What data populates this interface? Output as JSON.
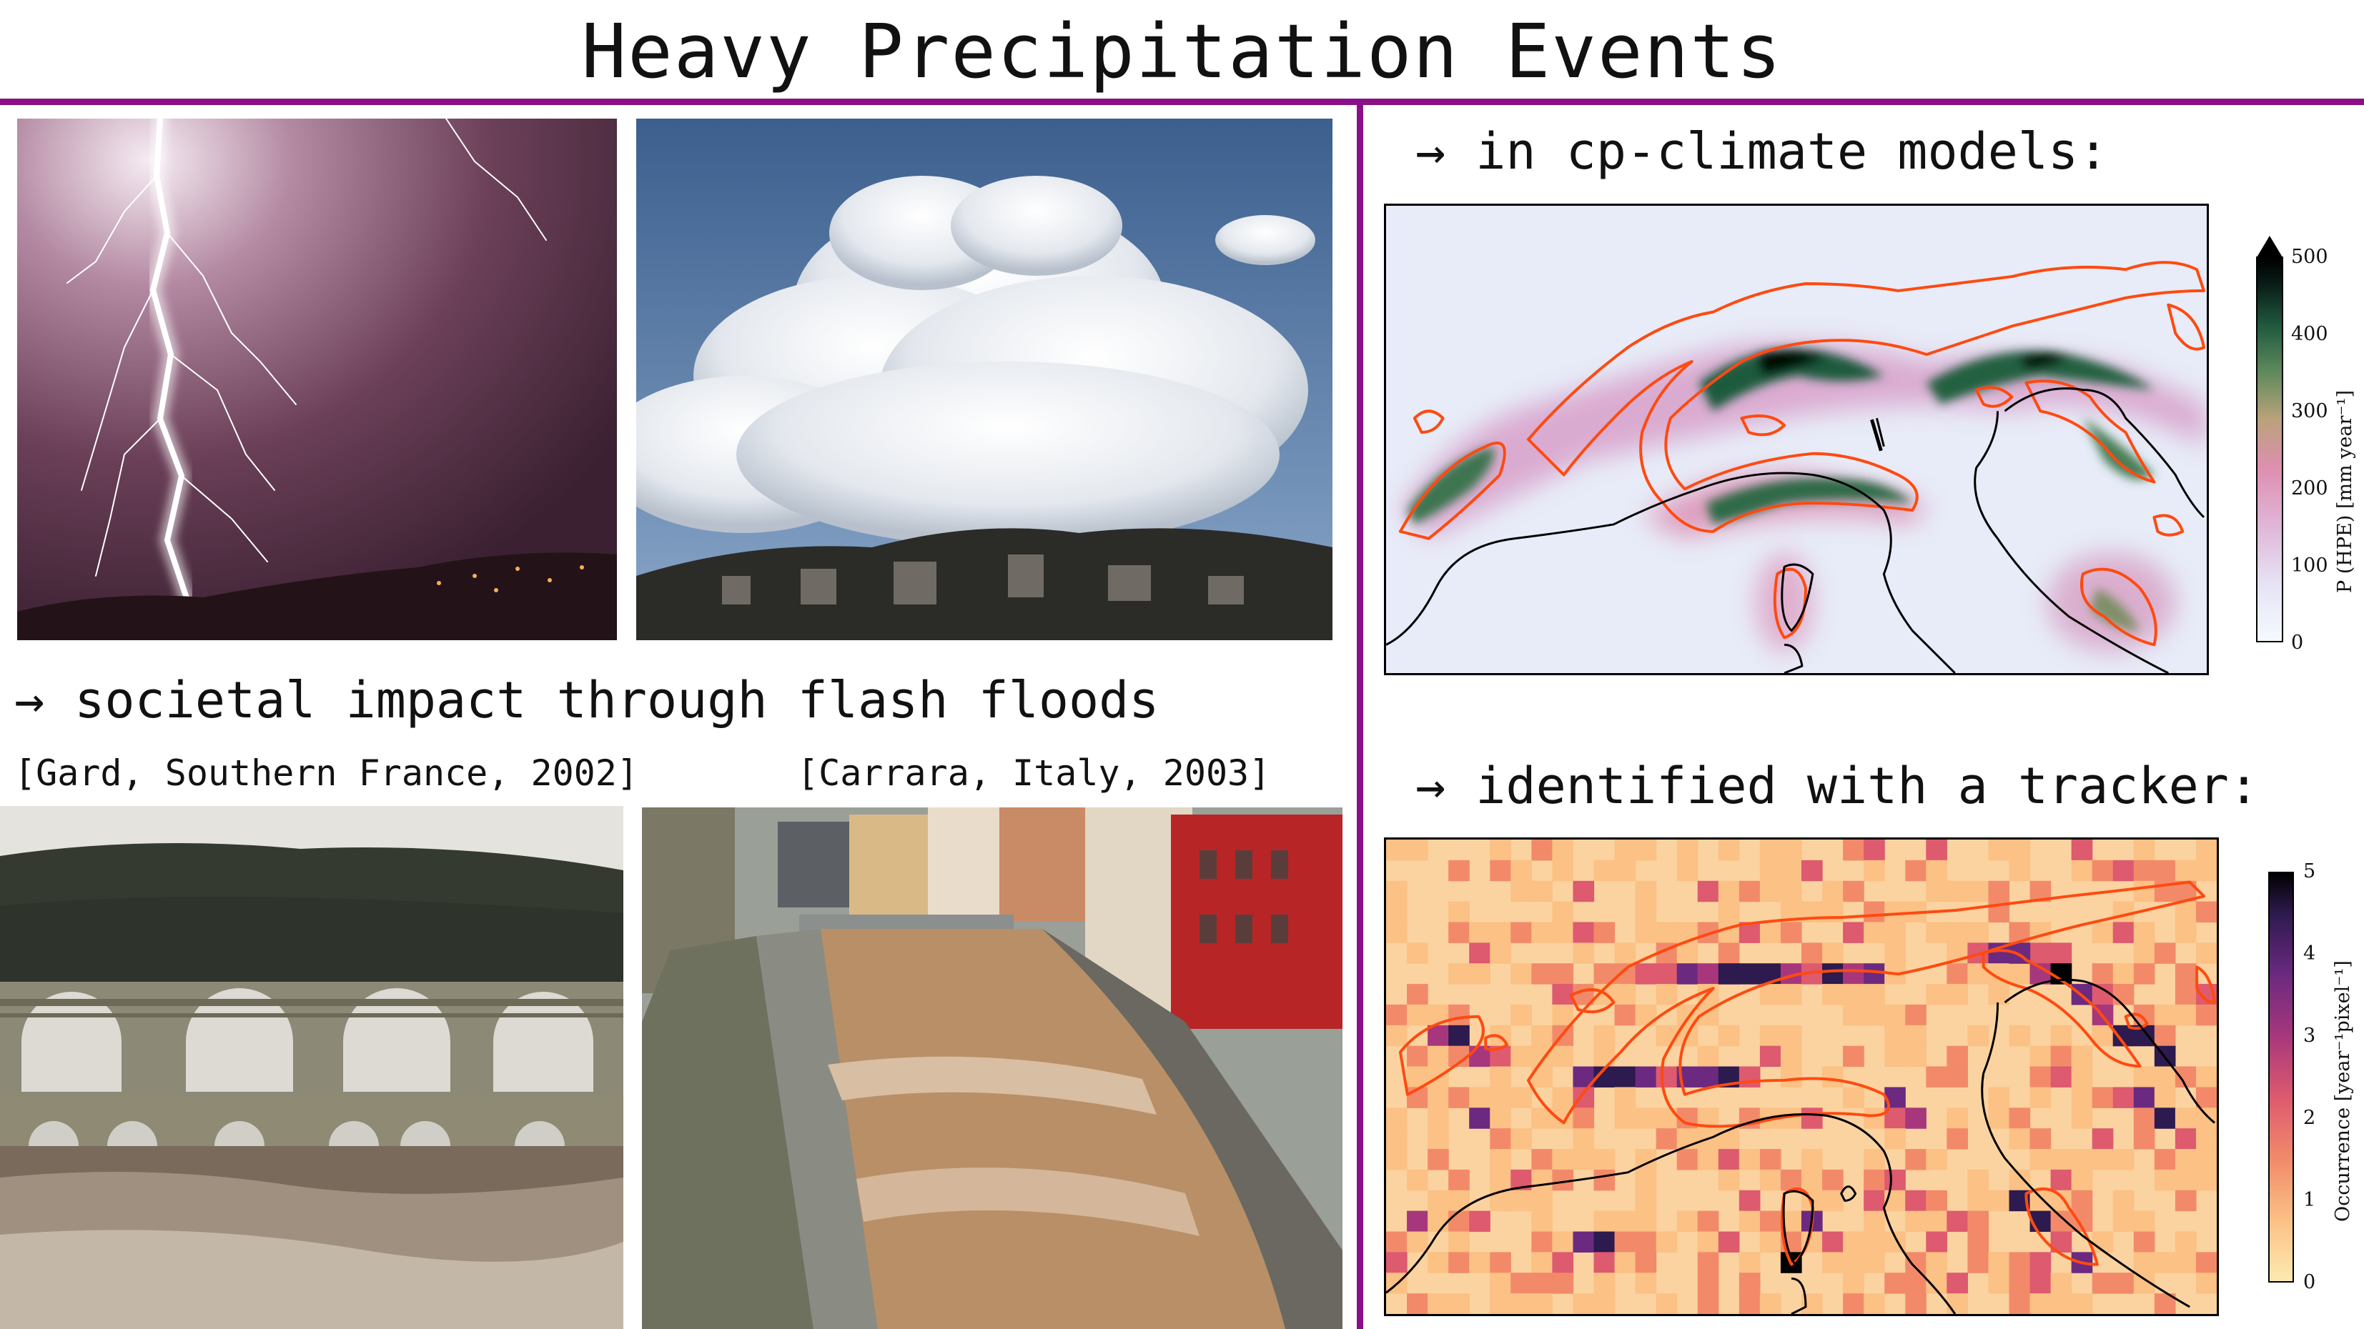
{
  "title": "Heavy Precipitation Events",
  "left": {
    "impact_heading": "→ societal impact through flash floods",
    "captions": [
      "[Gard, Southern France, 2002]",
      "[Carrara, Italy, 2003]"
    ],
    "photos": [
      {
        "name": "lightning-photo"
      },
      {
        "name": "cumulus-cloud-photo"
      },
      {
        "name": "gard-flood-photo"
      },
      {
        "name": "carrara-flood-photo"
      }
    ]
  },
  "right": {
    "model_heading": "→ in cp-climate models:",
    "tracker_heading": "→ identified with a tracker:",
    "map1": {
      "colorbar_label": "P (HPE) [mm year⁻¹]",
      "ticks": [
        "500",
        "400",
        "300",
        "200",
        "100",
        "0"
      ],
      "colormap": [
        "#f4fbff",
        "#e6e3f4",
        "#e0b6d8",
        "#de8fb0",
        "#b9a27a",
        "#5f8a5c",
        "#215a3f",
        "#091c17",
        "#000000"
      ]
    },
    "map2": {
      "colorbar_label": "Occurrence [year⁻¹pixel⁻¹]",
      "ticks": [
        "5",
        "4",
        "3",
        "2",
        "1",
        "0"
      ],
      "colormap": [
        "#fdeab2",
        "#fbc185",
        "#f28a6a",
        "#dd5a6f",
        "#a7377c",
        "#6b2a7f",
        "#2d1a4e",
        "#000000"
      ]
    },
    "accent_color": "#8a1088",
    "contour_color": "#ff4a10"
  }
}
